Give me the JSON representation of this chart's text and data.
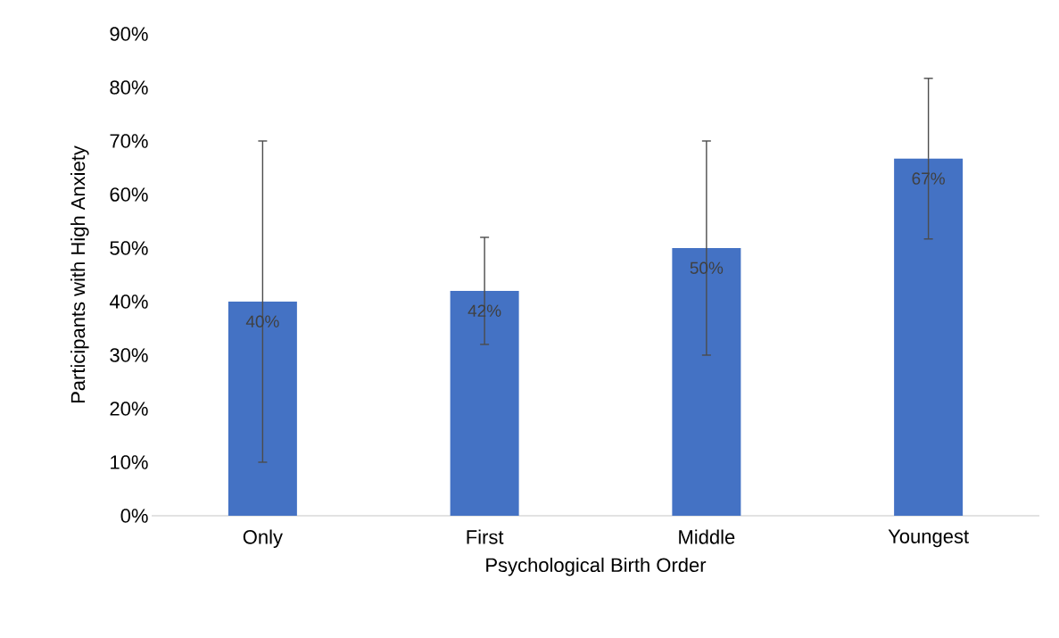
{
  "chart_data": {
    "type": "bar",
    "xlabel": "Psychological Birth Order",
    "ylabel": "Participants with High Anxiety",
    "categories": [
      "Only",
      "First",
      "Middle",
      "Youngest"
    ],
    "values": [
      40,
      42,
      50,
      66.7
    ],
    "errors": [
      30,
      10,
      20,
      15
    ],
    "value_labels": [
      "40%",
      "42%",
      "50%",
      "67%"
    ],
    "color": "#4472c4",
    "ylim": [
      0,
      90
    ],
    "yticks": [
      {
        "value": 0,
        "label": "0%"
      },
      {
        "value": 10,
        "label": "10%"
      },
      {
        "value": 20,
        "label": "20%"
      },
      {
        "value": 30,
        "label": "30%"
      },
      {
        "value": 40,
        "label": "40%"
      },
      {
        "value": 50,
        "label": "50%"
      },
      {
        "value": 60,
        "label": "60%"
      },
      {
        "value": 70,
        "label": "70%"
      },
      {
        "value": 80,
        "label": "80%"
      },
      {
        "value": 90,
        "label": "90%"
      }
    ],
    "tick_labels": true
  }
}
